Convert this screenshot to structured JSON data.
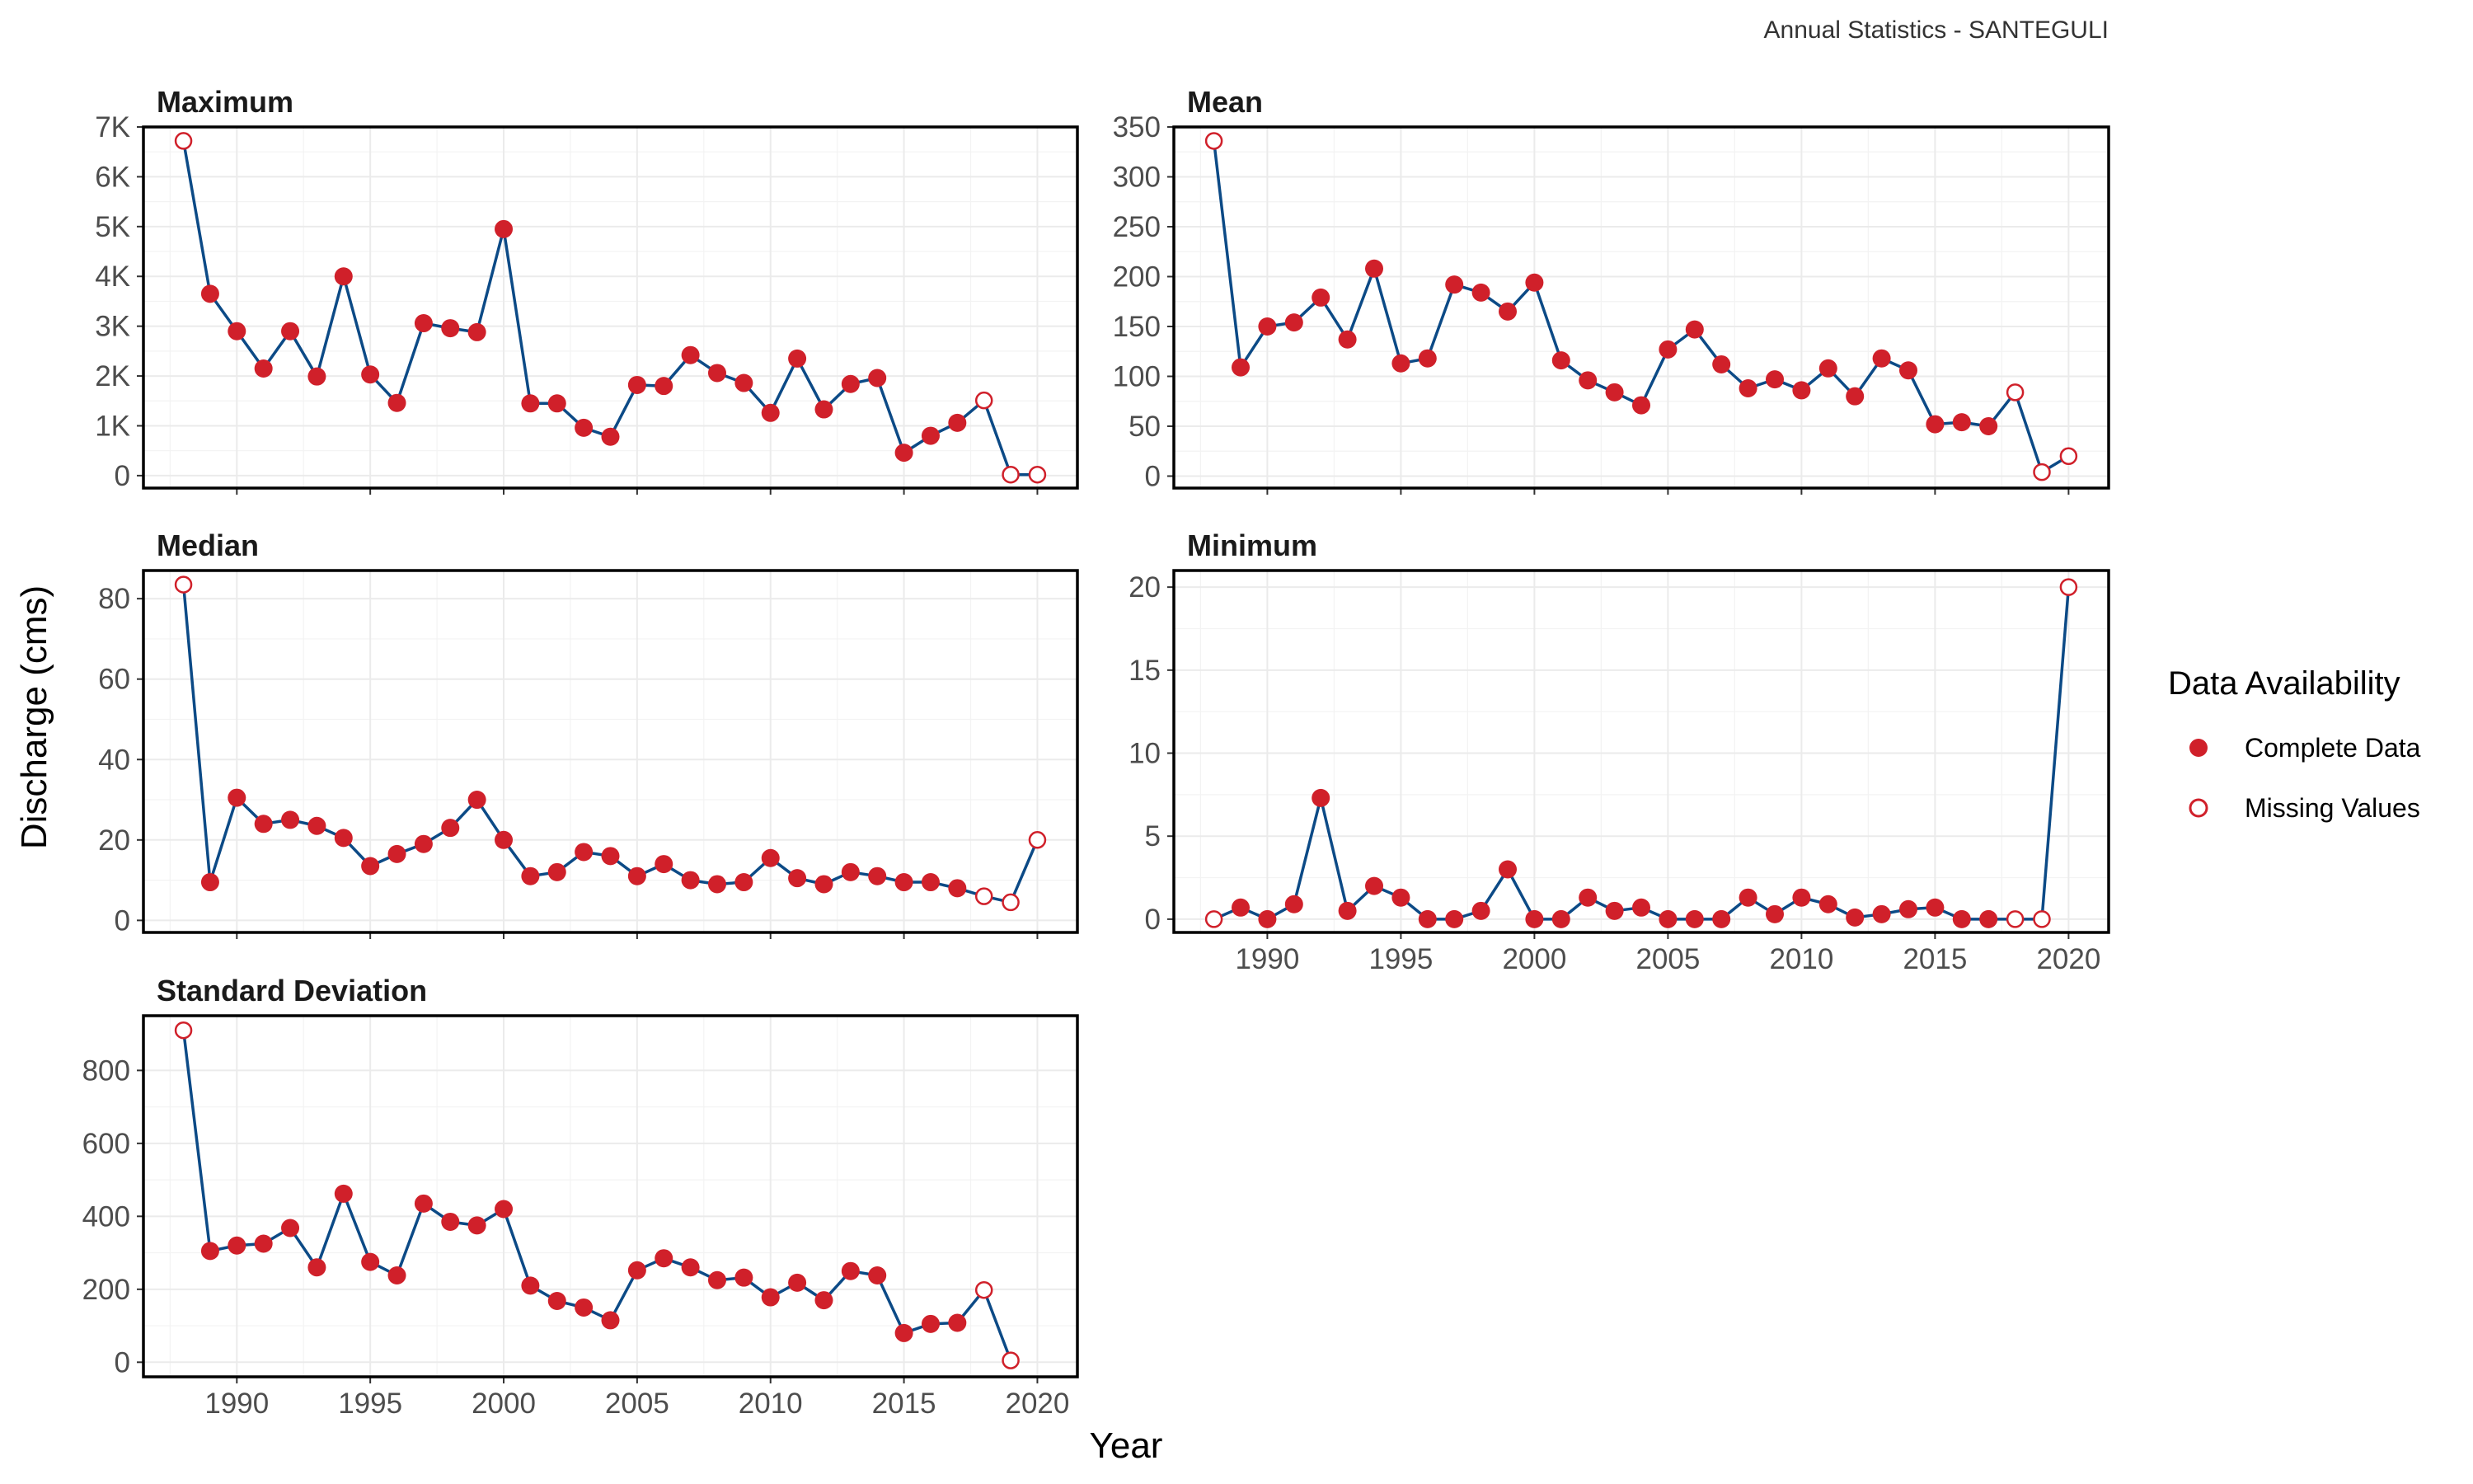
{
  "figure": {
    "caption": "Annual Statistics - SANTEGULI",
    "x_axis_title": "Year",
    "y_axis_title": "Discharge (cms)"
  },
  "legend": {
    "title": "Data Availability",
    "entries": [
      {
        "label": "Complete Data",
        "marker": "filled"
      },
      {
        "label": "Missing Values",
        "marker": "hollow"
      }
    ]
  },
  "colors": {
    "line": "#0c4a86",
    "point": "#d0202a",
    "panel_border": "#000000",
    "grid": "#ebebeb"
  },
  "chart_data": [
    {
      "type": "line",
      "title": "Maximum",
      "x": [
        1988,
        1989,
        1990,
        1991,
        1992,
        1993,
        1994,
        1995,
        1996,
        1997,
        1998,
        1999,
        2000,
        2001,
        2002,
        2003,
        2004,
        2005,
        2006,
        2007,
        2008,
        2009,
        2010,
        2011,
        2012,
        2013,
        2014,
        2015,
        2016,
        2017,
        2018,
        2019,
        2020
      ],
      "values": [
        6720,
        3650,
        2900,
        2150,
        2900,
        1990,
        4000,
        2030,
        1460,
        3060,
        2960,
        2880,
        4950,
        1450,
        1450,
        960,
        780,
        1820,
        1800,
        2420,
        2060,
        1860,
        1260,
        2350,
        1330,
        1840,
        1960,
        460,
        800,
        1060,
        1510,
        20,
        20
      ],
      "missing": [
        1988,
        2018,
        2019,
        2020
      ],
      "ylim": [
        -250,
        7000
      ],
      "yticks": [
        0,
        1000,
        2000,
        3000,
        4000,
        5000,
        6000,
        7000
      ],
      "yticklabels": [
        "0",
        "1K",
        "2K",
        "3K",
        "4K",
        "5K",
        "6K",
        "7K"
      ],
      "xticks": [
        1990,
        1995,
        2000,
        2005,
        2010,
        2015,
        2020
      ],
      "xticklabels": [
        "1990",
        "1995",
        "2000",
        "2005",
        "2010",
        "2015",
        "2020"
      ],
      "show_x_labels": false
    },
    {
      "type": "line",
      "title": "Mean",
      "x": [
        1988,
        1989,
        1990,
        1991,
        1992,
        1993,
        1994,
        1995,
        1996,
        1997,
        1998,
        1999,
        2000,
        2001,
        2002,
        2003,
        2004,
        2005,
        2006,
        2007,
        2008,
        2009,
        2010,
        2011,
        2012,
        2013,
        2014,
        2015,
        2016,
        2017,
        2018,
        2019,
        2020
      ],
      "values": [
        336,
        109,
        150,
        154,
        179,
        137,
        208,
        113,
        118,
        192,
        184,
        165,
        194,
        116,
        96,
        84,
        71,
        127,
        147,
        112,
        88,
        97,
        86,
        108,
        80,
        118,
        106,
        52,
        54,
        50,
        84,
        4,
        20
      ],
      "missing": [
        1988,
        2018,
        2019,
        2020
      ],
      "ylim": [
        -12,
        350
      ],
      "yticks": [
        0,
        50,
        100,
        150,
        200,
        250,
        300,
        350
      ],
      "yticklabels": [
        "0",
        "50",
        "100",
        "150",
        "200",
        "250",
        "300",
        "350"
      ],
      "xticks": [
        1990,
        1995,
        2000,
        2005,
        2010,
        2015,
        2020
      ],
      "xticklabels": [
        "1990",
        "1995",
        "2000",
        "2005",
        "2010",
        "2015",
        "2020"
      ],
      "show_x_labels": false
    },
    {
      "type": "line",
      "title": "Median",
      "x": [
        1988,
        1989,
        1990,
        1991,
        1992,
        1993,
        1994,
        1995,
        1996,
        1997,
        1998,
        1999,
        2000,
        2001,
        2002,
        2003,
        2004,
        2005,
        2006,
        2007,
        2008,
        2009,
        2010,
        2011,
        2012,
        2013,
        2014,
        2015,
        2016,
        2017,
        2018,
        2019,
        2020
      ],
      "values": [
        83.5,
        9.5,
        30.5,
        24,
        25,
        23.5,
        20.5,
        13.5,
        16.5,
        19,
        23,
        30,
        20,
        11,
        12,
        17,
        16,
        11,
        14,
        10,
        9,
        9.5,
        15.5,
        10.5,
        9,
        12,
        11,
        9.5,
        9.5,
        8,
        6,
        4.5,
        20
      ],
      "missing": [
        1988,
        2018,
        2019,
        2020
      ],
      "ylim": [
        -3,
        87
      ],
      "yticks": [
        0,
        20,
        40,
        60,
        80
      ],
      "yticklabels": [
        "0",
        "20",
        "40",
        "60",
        "80"
      ],
      "xticks": [
        1990,
        1995,
        2000,
        2005,
        2010,
        2015,
        2020
      ],
      "xticklabels": [
        "1990",
        "1995",
        "2000",
        "2005",
        "2010",
        "2015",
        "2020"
      ],
      "show_x_labels": false
    },
    {
      "type": "line",
      "title": "Minimum",
      "x": [
        1988,
        1989,
        1990,
        1991,
        1992,
        1993,
        1994,
        1995,
        1996,
        1997,
        1998,
        1999,
        2000,
        2001,
        2002,
        2003,
        2004,
        2005,
        2006,
        2007,
        2008,
        2009,
        2010,
        2011,
        2012,
        2013,
        2014,
        2015,
        2016,
        2017,
        2018,
        2019,
        2020
      ],
      "values": [
        0,
        0.7,
        0,
        0.9,
        7.3,
        0.5,
        2,
        1.3,
        0,
        0,
        0.5,
        3,
        0,
        0,
        1.3,
        0.5,
        0.7,
        0,
        0,
        0,
        1.3,
        0.3,
        1.3,
        0.9,
        0.1,
        0.3,
        0.6,
        0.7,
        0,
        0,
        0,
        0,
        20
      ],
      "missing": [
        1988,
        2018,
        2019,
        2020
      ],
      "ylim": [
        -0.8,
        21
      ],
      "yticks": [
        0,
        5,
        10,
        15,
        20
      ],
      "yticklabels": [
        "0",
        "5",
        "10",
        "15",
        "20"
      ],
      "xticks": [
        1990,
        1995,
        2000,
        2005,
        2010,
        2015,
        2020
      ],
      "xticklabels": [
        "1990",
        "1995",
        "2000",
        "2005",
        "2010",
        "2015",
        "2020"
      ],
      "show_x_labels": true
    },
    {
      "type": "line",
      "title": "Standard Deviation",
      "x": [
        1988,
        1989,
        1990,
        1991,
        1992,
        1993,
        1994,
        1995,
        1996,
        1997,
        1998,
        1999,
        2000,
        2001,
        2002,
        2003,
        2004,
        2005,
        2006,
        2007,
        2008,
        2009,
        2010,
        2011,
        2012,
        2013,
        2014,
        2015,
        2016,
        2017,
        2018,
        2019
      ],
      "values": [
        910,
        305,
        320,
        325,
        368,
        260,
        462,
        275,
        238,
        435,
        385,
        375,
        420,
        210,
        168,
        150,
        115,
        252,
        285,
        260,
        225,
        232,
        178,
        218,
        170,
        250,
        238,
        80,
        105,
        108,
        198,
        5
      ],
      "missing": [
        1988,
        2018,
        2019
      ],
      "ylim": [
        -40,
        950
      ],
      "yticks": [
        0,
        200,
        400,
        600,
        800
      ],
      "yticklabels": [
        "0",
        "200",
        "400",
        "600",
        "800"
      ],
      "xticks": [
        1990,
        1995,
        2000,
        2005,
        2010,
        2015,
        2020
      ],
      "xticklabels": [
        "1990",
        "1995",
        "2000",
        "2005",
        "2010",
        "2015",
        "2020"
      ],
      "show_x_labels": true
    }
  ]
}
